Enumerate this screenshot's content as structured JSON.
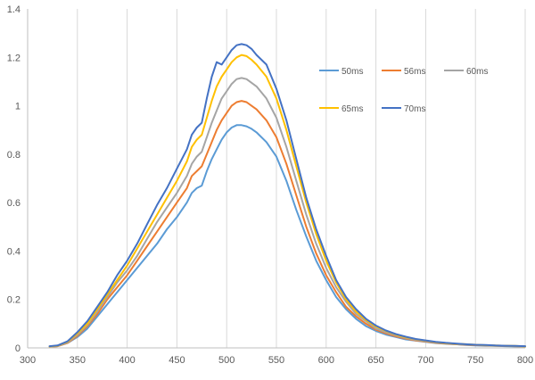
{
  "chart_data": {
    "type": "line",
    "title": "",
    "xlabel": "",
    "ylabel": "",
    "xlim": [
      300,
      800
    ],
    "ylim": [
      0,
      1.4
    ],
    "x_ticks": [
      300,
      350,
      400,
      450,
      500,
      550,
      600,
      650,
      700,
      750,
      800
    ],
    "y_ticks": [
      0,
      0.2,
      0.4,
      0.6,
      0.8,
      1,
      1.2,
      1.4
    ],
    "y_tick_labels": [
      "0",
      "0.2",
      "0.4",
      "0.6",
      "0.8",
      "1",
      "1.2",
      "1.4"
    ],
    "grid": "vertical-only",
    "legend_position": "top-right, inside plot",
    "x": [
      322,
      330,
      340,
      350,
      360,
      370,
      380,
      390,
      400,
      410,
      420,
      430,
      440,
      450,
      460,
      465,
      470,
      475,
      480,
      485,
      490,
      495,
      500,
      505,
      510,
      515,
      520,
      525,
      530,
      540,
      550,
      560,
      570,
      580,
      590,
      600,
      610,
      620,
      630,
      640,
      650,
      660,
      670,
      680,
      690,
      700,
      710,
      720,
      730,
      740,
      750,
      760,
      770,
      780,
      790,
      800
    ],
    "series": [
      {
        "name": "50ms",
        "color": "#5b9bd5",
        "values": [
          0.005,
          0.007,
          0.02,
          0.045,
          0.08,
          0.13,
          0.18,
          0.23,
          0.28,
          0.33,
          0.38,
          0.43,
          0.49,
          0.54,
          0.6,
          0.64,
          0.66,
          0.67,
          0.73,
          0.78,
          0.82,
          0.86,
          0.89,
          0.91,
          0.92,
          0.92,
          0.915,
          0.905,
          0.89,
          0.85,
          0.79,
          0.69,
          0.57,
          0.46,
          0.36,
          0.28,
          0.21,
          0.16,
          0.12,
          0.09,
          0.07,
          0.055,
          0.045,
          0.035,
          0.03,
          0.025,
          0.02,
          0.017,
          0.015,
          0.012,
          0.01,
          0.009,
          0.008,
          0.007,
          0.006,
          0.005
        ]
      },
      {
        "name": "56ms",
        "color": "#ed7d31",
        "values": [
          0.005,
          0.007,
          0.02,
          0.05,
          0.09,
          0.14,
          0.2,
          0.25,
          0.3,
          0.36,
          0.42,
          0.48,
          0.54,
          0.6,
          0.66,
          0.71,
          0.73,
          0.75,
          0.8,
          0.85,
          0.9,
          0.94,
          0.97,
          1.0,
          1.015,
          1.02,
          1.015,
          1.0,
          0.985,
          0.94,
          0.87,
          0.76,
          0.63,
          0.5,
          0.39,
          0.3,
          0.23,
          0.17,
          0.13,
          0.1,
          0.075,
          0.06,
          0.048,
          0.038,
          0.031,
          0.026,
          0.021,
          0.018,
          0.015,
          0.013,
          0.011,
          0.01,
          0.009,
          0.008,
          0.007,
          0.006
        ]
      },
      {
        "name": "60ms",
        "color": "#a5a5a5",
        "values": [
          0.005,
          0.008,
          0.022,
          0.055,
          0.095,
          0.15,
          0.21,
          0.27,
          0.32,
          0.38,
          0.45,
          0.52,
          0.58,
          0.64,
          0.71,
          0.76,
          0.79,
          0.81,
          0.87,
          0.93,
          0.98,
          1.03,
          1.06,
          1.09,
          1.11,
          1.115,
          1.11,
          1.095,
          1.08,
          1.03,
          0.95,
          0.83,
          0.69,
          0.55,
          0.43,
          0.33,
          0.25,
          0.19,
          0.14,
          0.11,
          0.08,
          0.065,
          0.052,
          0.041,
          0.033,
          0.028,
          0.023,
          0.019,
          0.016,
          0.014,
          0.012,
          0.011,
          0.009,
          0.008,
          0.007,
          0.006
        ]
      },
      {
        "name": "65ms",
        "color": "#ffc000",
        "values": [
          0.006,
          0.009,
          0.025,
          0.06,
          0.1,
          0.16,
          0.22,
          0.28,
          0.34,
          0.41,
          0.48,
          0.55,
          0.62,
          0.69,
          0.77,
          0.83,
          0.86,
          0.88,
          0.95,
          1.02,
          1.08,
          1.12,
          1.15,
          1.18,
          1.2,
          1.21,
          1.205,
          1.19,
          1.17,
          1.12,
          1.03,
          0.9,
          0.75,
          0.6,
          0.47,
          0.36,
          0.27,
          0.2,
          0.15,
          0.115,
          0.088,
          0.07,
          0.055,
          0.044,
          0.036,
          0.03,
          0.024,
          0.02,
          0.017,
          0.015,
          0.013,
          0.011,
          0.01,
          0.009,
          0.008,
          0.006
        ]
      },
      {
        "name": "70ms",
        "color": "#4472c4",
        "values": [
          0.007,
          0.01,
          0.027,
          0.065,
          0.11,
          0.17,
          0.23,
          0.3,
          0.36,
          0.43,
          0.51,
          0.59,
          0.66,
          0.74,
          0.82,
          0.88,
          0.91,
          0.93,
          1.03,
          1.12,
          1.18,
          1.17,
          1.2,
          1.23,
          1.25,
          1.255,
          1.25,
          1.235,
          1.21,
          1.17,
          1.07,
          0.94,
          0.78,
          0.62,
          0.49,
          0.38,
          0.28,
          0.21,
          0.16,
          0.12,
          0.092,
          0.072,
          0.057,
          0.046,
          0.037,
          0.031,
          0.025,
          0.021,
          0.018,
          0.015,
          0.013,
          0.012,
          0.01,
          0.009,
          0.008,
          0.007
        ]
      }
    ]
  }
}
